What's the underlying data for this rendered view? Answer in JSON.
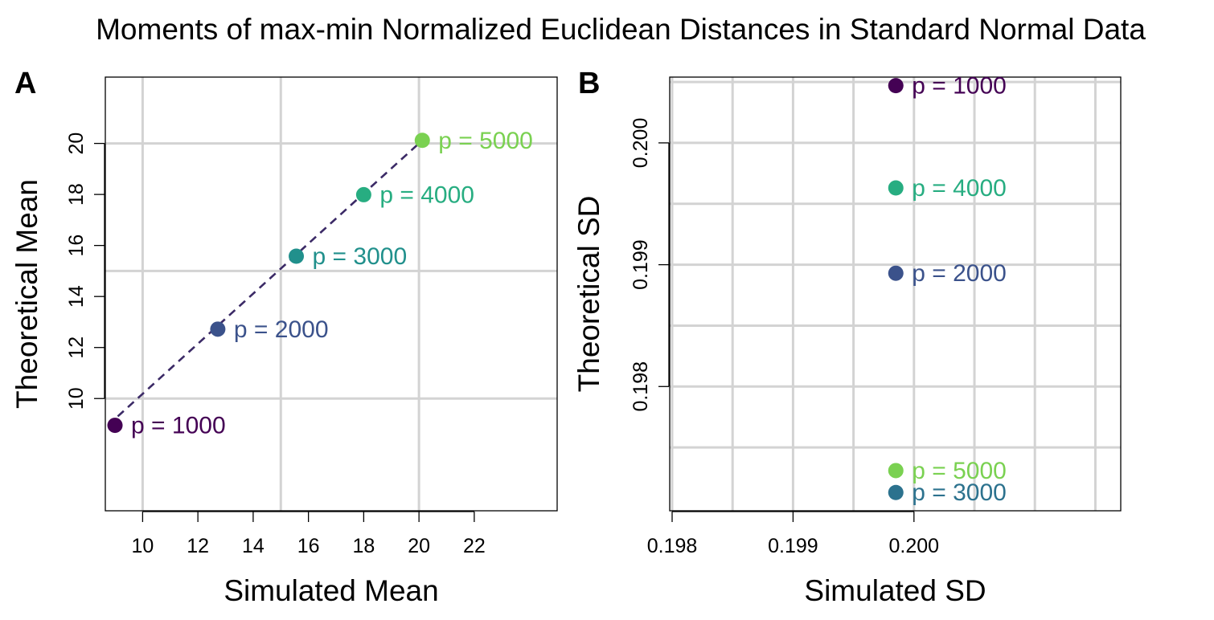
{
  "title": "Moments of max-min Normalized Euclidean Distances in Standard Normal Data",
  "chart_data": [
    {
      "panel": "A",
      "type": "scatter",
      "xlabel": "Simulated Mean",
      "ylabel": "Theoretical Mean",
      "xlim": [
        8.65,
        25.0
      ],
      "ylim": [
        5.6,
        22.6
      ],
      "xticks": [
        10,
        12,
        14,
        16,
        18,
        20,
        22
      ],
      "yticks": [
        10,
        12,
        14,
        16,
        18,
        20
      ],
      "xgrid": [
        10,
        15,
        20
      ],
      "ygrid": [
        10,
        15,
        20
      ],
      "reference_line": {
        "style": "dashed",
        "color": "#3b2a66",
        "from": [
          9.1,
          9.3
        ],
        "to": [
          20.1,
          20.1
        ]
      },
      "points": [
        {
          "label": "p = 1000",
          "x": 9.0,
          "y": 8.95,
          "color": "#440154"
        },
        {
          "label": "p = 2000",
          "x": 12.72,
          "y": 12.72,
          "color": "#3b528b"
        },
        {
          "label": "p = 3000",
          "x": 15.56,
          "y": 15.58,
          "color": "#21908c"
        },
        {
          "label": "p = 4000",
          "x": 18.0,
          "y": 17.99,
          "color": "#27ad81"
        },
        {
          "label": "p = 5000",
          "x": 20.12,
          "y": 20.12,
          "color": "#7ad151"
        }
      ]
    },
    {
      "panel": "B",
      "type": "scatter",
      "xlabel": "Simulated SD",
      "ylabel": "Theoretical SD",
      "xlim": [
        0.19798,
        0.20171
      ],
      "ylim": [
        0.19698,
        0.20054
      ],
      "xticks": [
        0.198,
        0.199,
        0.2
      ],
      "xtick_labels": [
        "0.198",
        "0.199",
        "0.200"
      ],
      "yticks": [
        0.198,
        0.199,
        0.2
      ],
      "ytick_labels": [
        "0.198",
        "0.199",
        "0.200"
      ],
      "xgrid": [
        0.198,
        0.1985,
        0.199,
        0.1995,
        0.2,
        0.2005,
        0.201,
        0.2015
      ],
      "ygrid": [
        0.1975,
        0.198,
        0.1985,
        0.199,
        0.1995,
        0.2,
        0.2005
      ],
      "points": [
        {
          "label": "p = 1000",
          "x": 0.19985,
          "y": 0.20047,
          "color": "#440154"
        },
        {
          "label": "p = 4000",
          "x": 0.19985,
          "y": 0.19963,
          "color": "#27ad81"
        },
        {
          "label": "p = 2000",
          "x": 0.19985,
          "y": 0.19893,
          "color": "#3b528b"
        },
        {
          "label": "p = 5000",
          "x": 0.19985,
          "y": 0.19731,
          "color": "#7ad151"
        },
        {
          "label": "p = 3000",
          "x": 0.19985,
          "y": 0.19713,
          "color": "#2c728e"
        }
      ]
    }
  ]
}
